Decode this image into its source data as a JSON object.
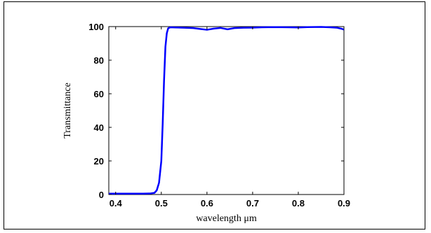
{
  "chart_data": {
    "type": "line",
    "title": "",
    "xlabel": "wavelength μm",
    "ylabel": "Transmittance",
    "xlim": [
      0.385,
      0.9
    ],
    "ylim": [
      0,
      100
    ],
    "xticks": [
      "0.4",
      "0.5",
      "0.6",
      "0.7",
      "0.8",
      "0.9"
    ],
    "yticks": [
      "0",
      "20",
      "40",
      "60",
      "80",
      "100"
    ],
    "grid": false,
    "legend": "none",
    "line_color": "#0000ff",
    "series": [
      {
        "x": [
          0.385,
          0.4,
          0.42,
          0.44,
          0.46,
          0.475,
          0.485,
          0.49,
          0.495,
          0.5,
          0.503,
          0.506,
          0.509,
          0.512,
          0.515,
          0.52,
          0.53,
          0.55,
          0.57,
          0.585,
          0.6,
          0.615,
          0.63,
          0.645,
          0.66,
          0.68,
          0.7,
          0.72,
          0.75,
          0.78,
          0.8,
          0.82,
          0.85,
          0.87,
          0.885,
          0.895,
          0.9
        ],
        "y": [
          0.5,
          0.5,
          0.5,
          0.5,
          0.5,
          0.6,
          1.0,
          2.5,
          7,
          20,
          42,
          68,
          88,
          96,
          99,
          99.6,
          99.5,
          99.3,
          99.1,
          98.6,
          98.1,
          98.8,
          99.2,
          98.4,
          99.1,
          99.3,
          99.4,
          99.6,
          99.7,
          99.6,
          99.5,
          99.7,
          99.8,
          99.6,
          99.3,
          98.7,
          98.2
        ]
      }
    ]
  }
}
